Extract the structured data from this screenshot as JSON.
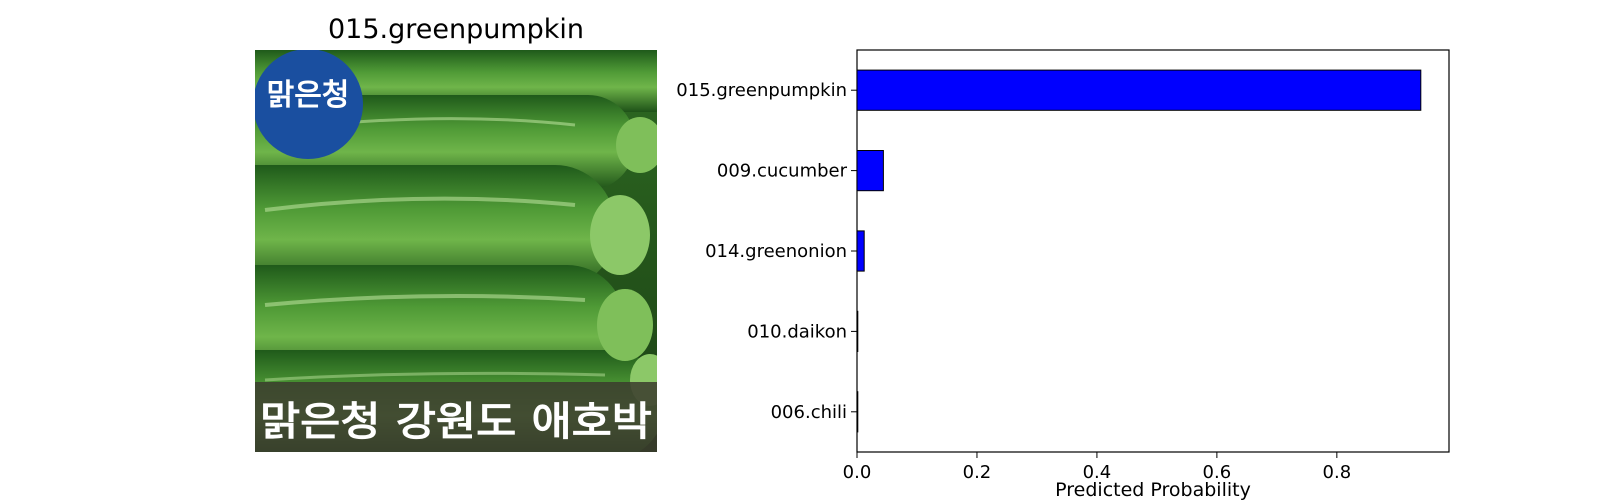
{
  "image_panel": {
    "title": "015.greenpumpkin",
    "logo_text": "맑은청",
    "banner_text": "맑은청 강원도 애호박"
  },
  "chart_data": {
    "type": "bar",
    "orientation": "horizontal",
    "categories": [
      "015.greenpumpkin",
      "009.cucumber",
      "014.greenonion",
      "010.daikon",
      "006.chili"
    ],
    "values": [
      0.94,
      0.044,
      0.012,
      0.001,
      0.0005
    ],
    "xlabel": "Predicted Probability",
    "ylabel": "",
    "xlim": [
      0,
      0.987
    ],
    "xticks": [
      0.0,
      0.2,
      0.4,
      0.6,
      0.8
    ],
    "xtick_labels": [
      "0.0",
      "0.2",
      "0.4",
      "0.6",
      "0.8"
    ],
    "bar_color": "#0000ff",
    "edge_color": "#000000",
    "grid": false
  }
}
